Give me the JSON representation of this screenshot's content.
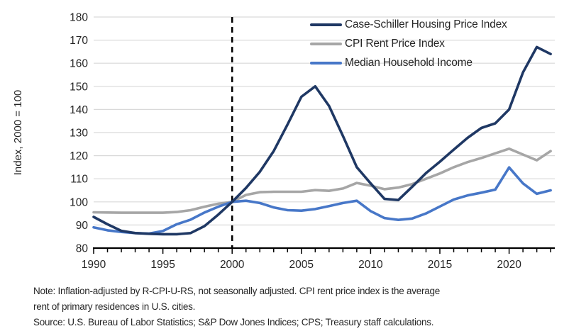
{
  "colors": {
    "case_shiller_line": "#1F3864",
    "cpi_rent_line": "#A6A6A6",
    "median_income_line": "#4777C8",
    "gridline": "#D9D9D9",
    "axis": "#000000",
    "reference_line": "#000000",
    "text": "#262626"
  },
  "chart_data": {
    "type": "line",
    "title": "",
    "xlabel": "",
    "ylabel": "Index, 2000 = 100",
    "xlim": [
      1990,
      2023.3
    ],
    "ylim": [
      80,
      180
    ],
    "yticks": [
      80,
      90,
      100,
      110,
      120,
      130,
      140,
      150,
      160,
      170,
      180
    ],
    "xticks_major": [
      1990,
      1995,
      2000,
      2005,
      2010,
      2015,
      2020
    ],
    "xticks_minor_every": 1,
    "grid": "horizontal",
    "reference_line_x": 2000,
    "legend_position": "top-right",
    "x": [
      1990,
      1991,
      1992,
      1993,
      1994,
      1995,
      1996,
      1997,
      1998,
      1999,
      2000,
      2001,
      2002,
      2003,
      2004,
      2005,
      2006,
      2007,
      2008,
      2009,
      2010,
      2011,
      2012,
      2013,
      2014,
      2015,
      2016,
      2017,
      2018,
      2019,
      2020,
      2021,
      2022,
      2023
    ],
    "series": [
      {
        "name": "Case-Schiller Housing Price Index",
        "color": "#1F3864",
        "values": [
          93.5,
          90.3,
          87.5,
          86.5,
          86.2,
          86,
          86,
          86.5,
          89.5,
          94.5,
          100,
          106,
          113,
          122,
          133.5,
          145.5,
          150,
          141.5,
          128.5,
          115,
          108,
          101.3,
          100.8,
          106.5,
          112.5,
          117.4,
          122.6,
          127.7,
          132,
          134,
          140,
          156,
          167,
          164
        ]
      },
      {
        "name": "CPI Rent Price Index",
        "color": "#A6A6A6",
        "values": [
          95.5,
          95.4,
          95.3,
          95.3,
          95.3,
          95.3,
          95.6,
          96.4,
          97.9,
          99.2,
          100,
          103,
          104.2,
          104.4,
          104.4,
          104.4,
          105.1,
          104.8,
          105.8,
          108.2,
          107,
          105.5,
          106.2,
          107.7,
          110,
          112.3,
          115,
          117.2,
          119,
          121,
          123,
          120.5,
          118,
          122
        ]
      },
      {
        "name": "Median Household Income",
        "color": "#4777C8",
        "values": [
          89,
          87.7,
          87,
          86.5,
          86.3,
          87.4,
          90.3,
          92.3,
          95.4,
          97.9,
          100,
          100.5,
          99.5,
          97.6,
          96.4,
          96.2,
          96.9,
          98.2,
          99.5,
          100.5,
          96,
          93,
          92.2,
          92.8,
          95,
          98,
          101,
          102.8,
          104,
          105.3,
          114.9,
          108,
          103.5,
          105
        ]
      }
    ]
  },
  "notes": {
    "note_line1": "Note: Inflation-adjusted by R-CPI-U-RS, not seasonally adjusted. CPI rent price index is the average",
    "note_line2": "rent of primary residences in U.S. cities.",
    "source_line": "Source: U.S. Bureau of Labor Statistics; S&P Dow Jones Indices; CPS; Treasury staff calculations."
  }
}
